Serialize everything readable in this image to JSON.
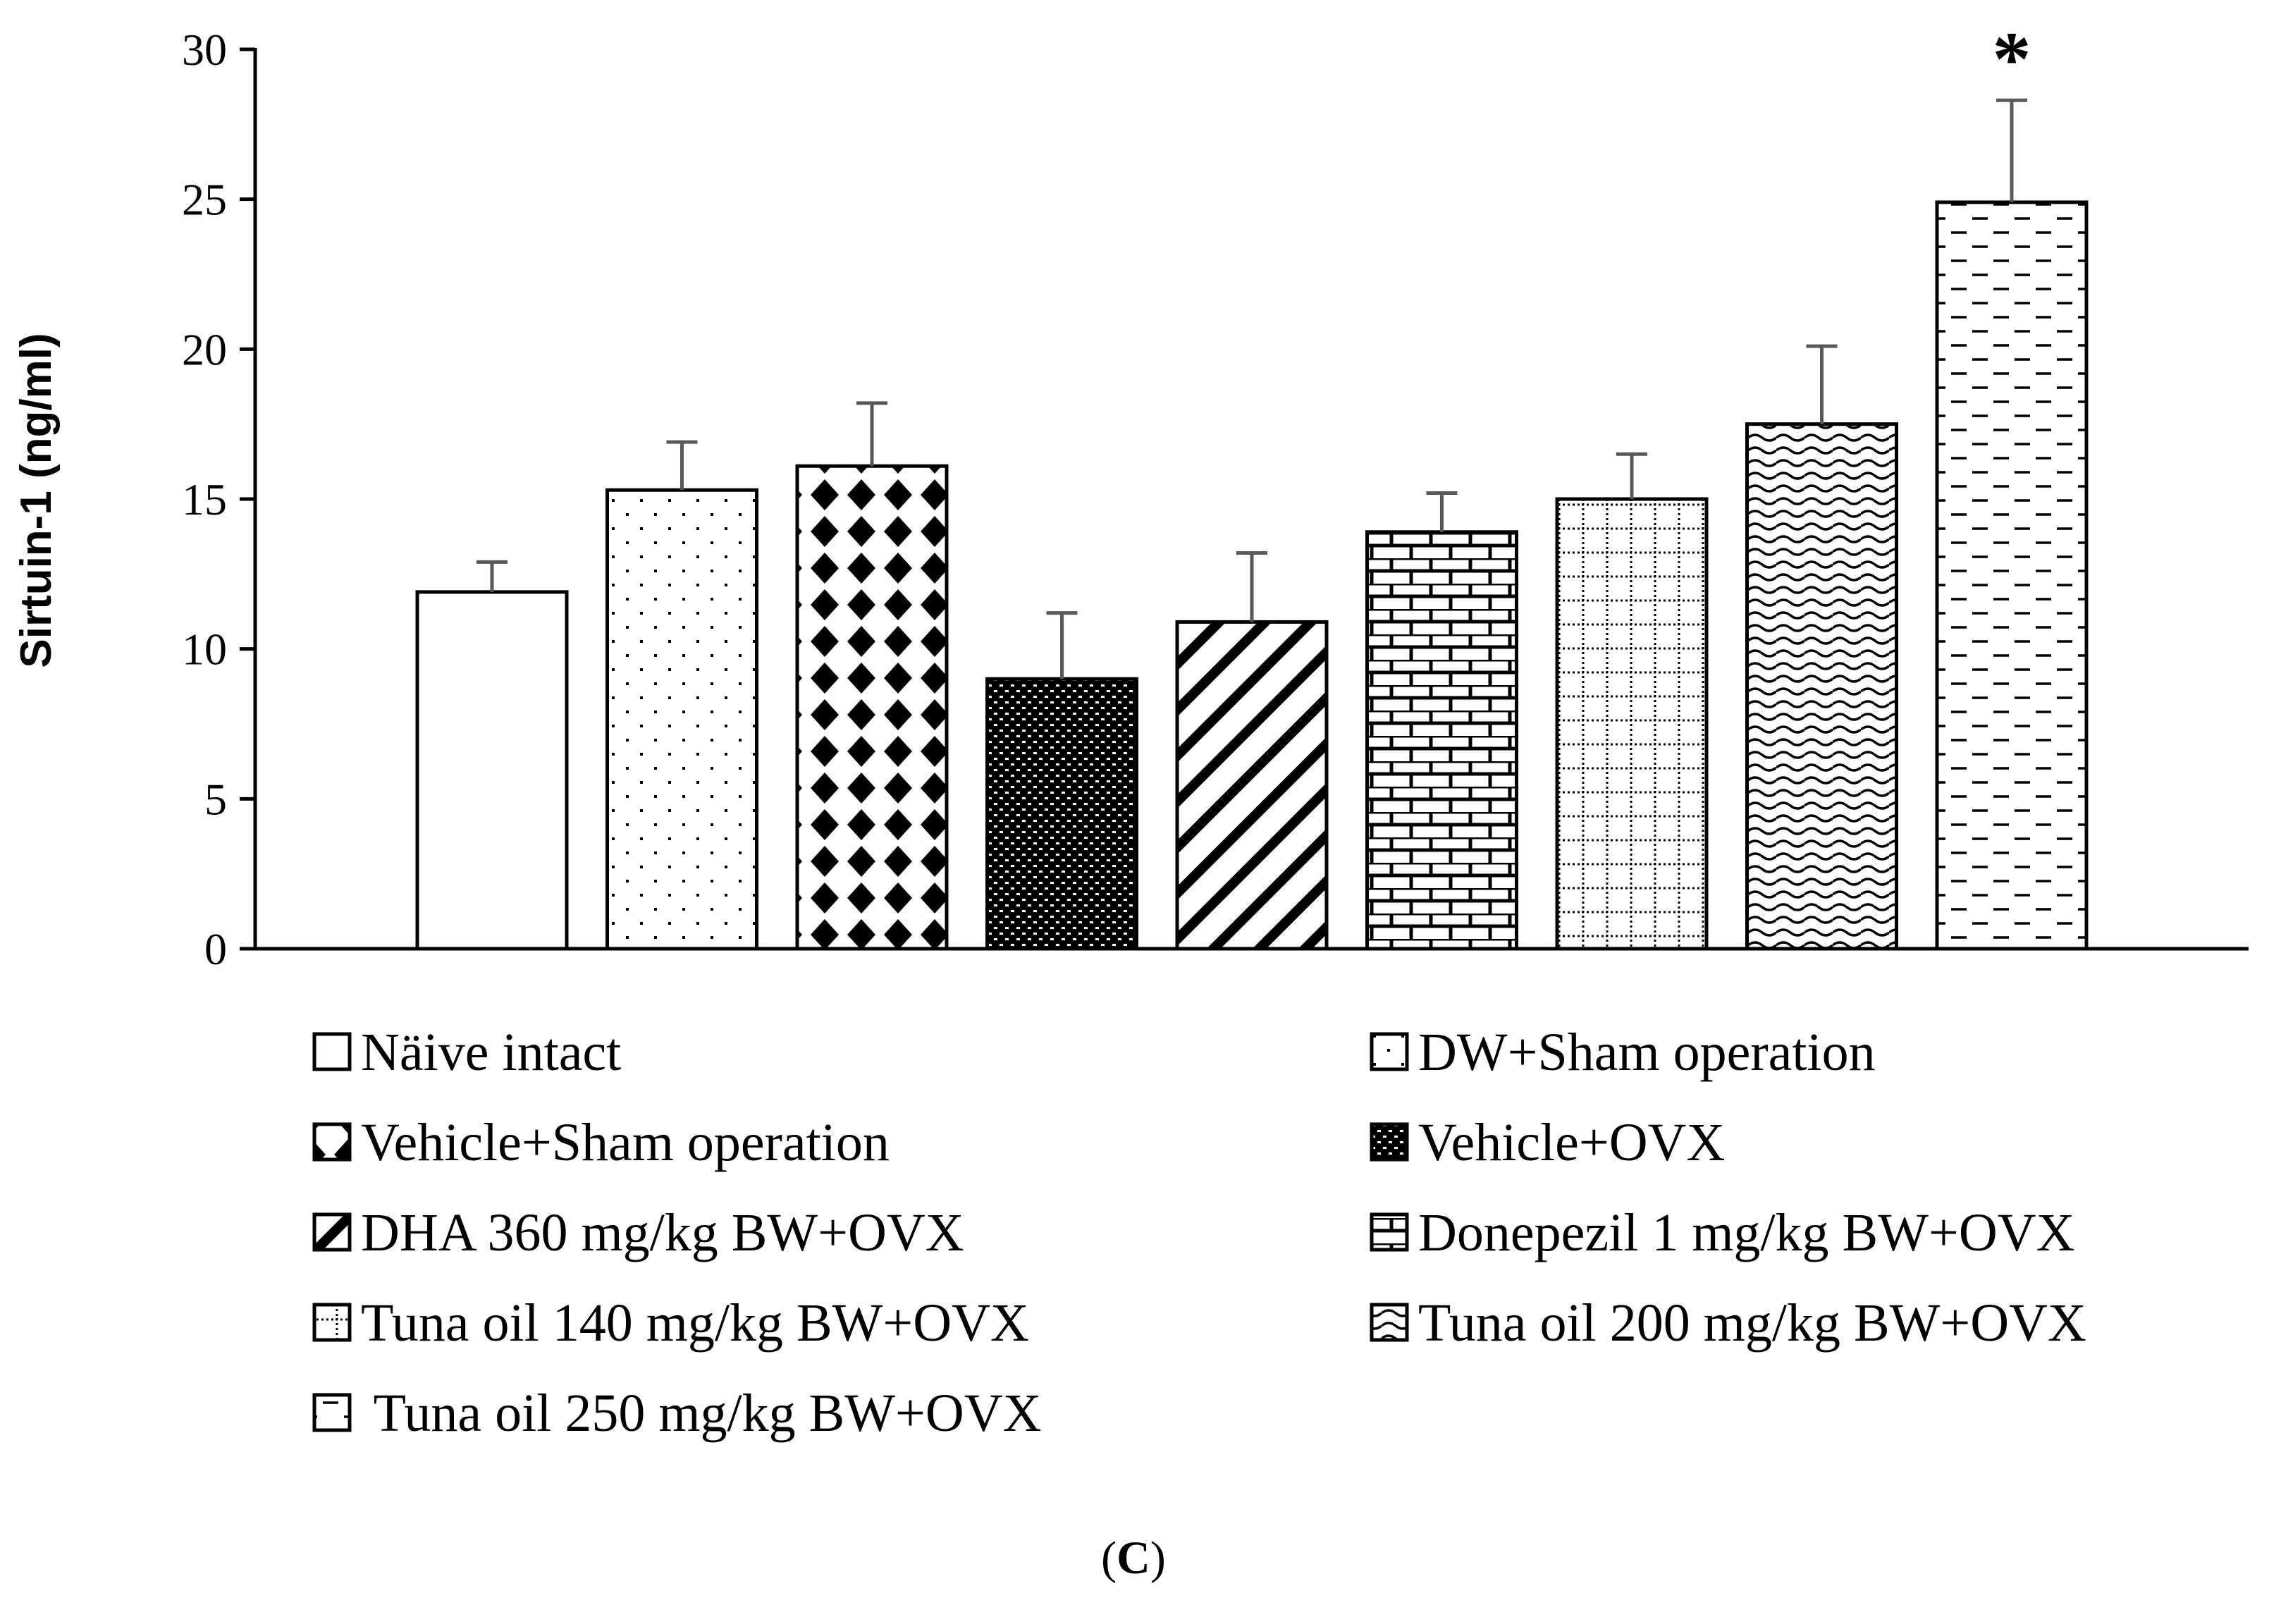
{
  "chart_data": {
    "type": "bar",
    "title": "",
    "xlabel": "",
    "ylabel": "Sirtuin-1 (ng/ml)",
    "ylim": [
      0,
      30
    ],
    "yticks": [
      0,
      5,
      10,
      15,
      20,
      25,
      30
    ],
    "series": [
      {
        "name": "Sirtuin-1",
        "categories": [
          "Näive intact",
          "DW+Sham operation",
          "Vehicle+Sham operation",
          "Vehicle+OVX",
          "DHA 360 mg/kg BW+OVX",
          "Donepezil 1 mg/kg BW+OVX",
          "Tuna oil 140 mg/kg BW+OVX",
          "Tuna oil 200 mg/kg BW+OVX",
          "Tuna oil 250 mg/kg BW+OVX"
        ],
        "values": [
          11.9,
          15.3,
          16.1,
          9.0,
          10.9,
          13.9,
          15.0,
          17.5,
          24.9
        ],
        "errors": [
          1.0,
          1.6,
          2.1,
          2.2,
          2.3,
          1.3,
          1.5,
          2.6,
          3.4
        ],
        "patterns": [
          "blank",
          "dots",
          "diamonds",
          "dense-weave",
          "diagonal",
          "bricks",
          "dotted-grid",
          "waves",
          "dashes"
        ],
        "annotations": [
          "",
          "",
          "",
          "",
          "",
          "",
          "",
          "",
          "*"
        ]
      }
    ],
    "legend": {
      "position": "bottom",
      "entries": [
        "Näive intact",
        "DW+Sham operation",
        "Vehicle+Sham operation",
        "Vehicle+OVX",
        "DHA 360 mg/kg BW+OVX",
        "Donepezil 1 mg/kg BW+OVX",
        "Tuna oil 140 mg/kg BW+OVX",
        "Tuna oil 200 mg/kg BW+OVX",
        " Tuna oil 250 mg/kg BW+OVX"
      ]
    }
  },
  "panel_label": {
    "open": "(",
    "letter": "C",
    "close": ")"
  },
  "colors": {
    "ink": "#000000",
    "error_bar": "#595959",
    "background": "#ffffff"
  }
}
